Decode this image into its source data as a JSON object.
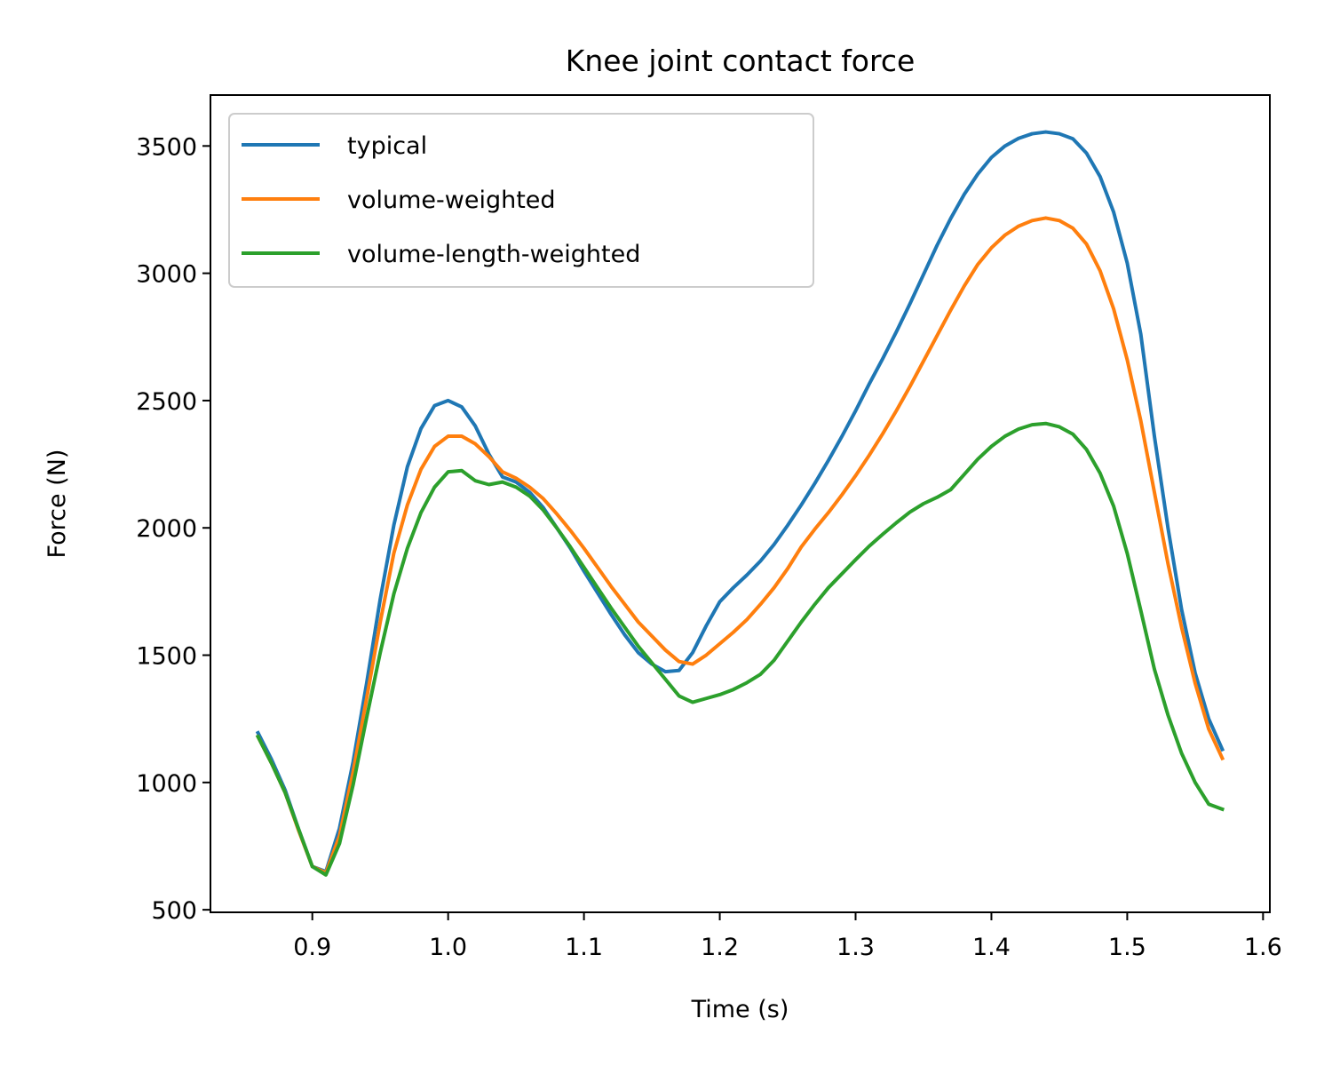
{
  "chart_data": {
    "type": "line",
    "title": "Knee joint contact force",
    "xlabel": "Time (s)",
    "ylabel": "Force (N)",
    "xlim": [
      0.825,
      1.605
    ],
    "ylim": [
      490,
      3700
    ],
    "xticks": [
      0.9,
      1.0,
      1.1,
      1.2,
      1.3,
      1.4,
      1.5,
      1.6
    ],
    "xtick_labels": [
      "0.9",
      "1.0",
      "1.1",
      "1.2",
      "1.3",
      "1.4",
      "1.5",
      "1.6"
    ],
    "yticks": [
      500,
      1000,
      1500,
      2000,
      2500,
      3000,
      3500
    ],
    "ytick_labels": [
      "500",
      "1000",
      "1500",
      "2000",
      "2500",
      "3000",
      "3500"
    ],
    "grid": false,
    "legend_position": "upper-left",
    "series": [
      {
        "name": "typical",
        "color": "#1f77b4",
        "points": [
          [
            0.86,
            1195
          ],
          [
            0.87,
            1090
          ],
          [
            0.88,
            970
          ],
          [
            0.89,
            815
          ],
          [
            0.9,
            670
          ],
          [
            0.91,
            650
          ],
          [
            0.92,
            820
          ],
          [
            0.93,
            1080
          ],
          [
            0.94,
            1390
          ],
          [
            0.95,
            1720
          ],
          [
            0.96,
            2010
          ],
          [
            0.97,
            2240
          ],
          [
            0.98,
            2390
          ],
          [
            0.99,
            2480
          ],
          [
            1.0,
            2500
          ],
          [
            1.01,
            2475
          ],
          [
            1.02,
            2400
          ],
          [
            1.03,
            2290
          ],
          [
            1.04,
            2200
          ],
          [
            1.05,
            2180
          ],
          [
            1.06,
            2140
          ],
          [
            1.07,
            2080
          ],
          [
            1.08,
            2000
          ],
          [
            1.09,
            1920
          ],
          [
            1.1,
            1830
          ],
          [
            1.11,
            1745
          ],
          [
            1.12,
            1660
          ],
          [
            1.13,
            1580
          ],
          [
            1.14,
            1510
          ],
          [
            1.15,
            1465
          ],
          [
            1.16,
            1435
          ],
          [
            1.17,
            1440
          ],
          [
            1.18,
            1510
          ],
          [
            1.19,
            1615
          ],
          [
            1.2,
            1710
          ],
          [
            1.21,
            1765
          ],
          [
            1.22,
            1815
          ],
          [
            1.23,
            1870
          ],
          [
            1.24,
            1935
          ],
          [
            1.25,
            2010
          ],
          [
            1.26,
            2090
          ],
          [
            1.27,
            2175
          ],
          [
            1.28,
            2265
          ],
          [
            1.29,
            2360
          ],
          [
            1.3,
            2460
          ],
          [
            1.31,
            2565
          ],
          [
            1.32,
            2665
          ],
          [
            1.33,
            2770
          ],
          [
            1.34,
            2880
          ],
          [
            1.35,
            2995
          ],
          [
            1.36,
            3110
          ],
          [
            1.37,
            3215
          ],
          [
            1.38,
            3310
          ],
          [
            1.39,
            3390
          ],
          [
            1.4,
            3455
          ],
          [
            1.41,
            3500
          ],
          [
            1.42,
            3530
          ],
          [
            1.43,
            3548
          ],
          [
            1.44,
            3555
          ],
          [
            1.45,
            3548
          ],
          [
            1.46,
            3528
          ],
          [
            1.47,
            3472
          ],
          [
            1.48,
            3380
          ],
          [
            1.49,
            3240
          ],
          [
            1.5,
            3040
          ],
          [
            1.51,
            2760
          ],
          [
            1.52,
            2360
          ],
          [
            1.53,
            2000
          ],
          [
            1.54,
            1680
          ],
          [
            1.55,
            1430
          ],
          [
            1.56,
            1250
          ],
          [
            1.57,
            1130
          ]
        ]
      },
      {
        "name": "volume-weighted",
        "color": "#ff7f0e",
        "points": [
          [
            0.86,
            1180
          ],
          [
            0.87,
            1075
          ],
          [
            0.88,
            960
          ],
          [
            0.89,
            810
          ],
          [
            0.9,
            670
          ],
          [
            0.91,
            645
          ],
          [
            0.92,
            790
          ],
          [
            0.93,
            1040
          ],
          [
            0.94,
            1330
          ],
          [
            0.95,
            1630
          ],
          [
            0.96,
            1900
          ],
          [
            0.97,
            2090
          ],
          [
            0.98,
            2230
          ],
          [
            0.99,
            2320
          ],
          [
            1.0,
            2360
          ],
          [
            1.01,
            2360
          ],
          [
            1.02,
            2330
          ],
          [
            1.03,
            2280
          ],
          [
            1.04,
            2220
          ],
          [
            1.05,
            2195
          ],
          [
            1.06,
            2160
          ],
          [
            1.07,
            2115
          ],
          [
            1.08,
            2055
          ],
          [
            1.09,
            1990
          ],
          [
            1.1,
            1920
          ],
          [
            1.11,
            1845
          ],
          [
            1.12,
            1770
          ],
          [
            1.13,
            1700
          ],
          [
            1.14,
            1630
          ],
          [
            1.15,
            1575
          ],
          [
            1.16,
            1520
          ],
          [
            1.17,
            1475
          ],
          [
            1.18,
            1465
          ],
          [
            1.19,
            1500
          ],
          [
            1.2,
            1545
          ],
          [
            1.21,
            1590
          ],
          [
            1.22,
            1640
          ],
          [
            1.23,
            1700
          ],
          [
            1.24,
            1765
          ],
          [
            1.25,
            1840
          ],
          [
            1.26,
            1925
          ],
          [
            1.27,
            1995
          ],
          [
            1.28,
            2060
          ],
          [
            1.29,
            2130
          ],
          [
            1.3,
            2205
          ],
          [
            1.31,
            2285
          ],
          [
            1.32,
            2370
          ],
          [
            1.33,
            2460
          ],
          [
            1.34,
            2555
          ],
          [
            1.35,
            2655
          ],
          [
            1.36,
            2755
          ],
          [
            1.37,
            2855
          ],
          [
            1.38,
            2950
          ],
          [
            1.39,
            3035
          ],
          [
            1.4,
            3100
          ],
          [
            1.41,
            3150
          ],
          [
            1.42,
            3185
          ],
          [
            1.43,
            3207
          ],
          [
            1.44,
            3217
          ],
          [
            1.45,
            3207
          ],
          [
            1.46,
            3177
          ],
          [
            1.47,
            3115
          ],
          [
            1.48,
            3010
          ],
          [
            1.49,
            2860
          ],
          [
            1.5,
            2660
          ],
          [
            1.51,
            2420
          ],
          [
            1.52,
            2140
          ],
          [
            1.53,
            1860
          ],
          [
            1.54,
            1610
          ],
          [
            1.55,
            1390
          ],
          [
            1.56,
            1210
          ],
          [
            1.57,
            1095
          ]
        ]
      },
      {
        "name": "volume-length-weighted",
        "color": "#2ca02c",
        "points": [
          [
            0.86,
            1180
          ],
          [
            0.87,
            1075
          ],
          [
            0.88,
            960
          ],
          [
            0.89,
            815
          ],
          [
            0.9,
            670
          ],
          [
            0.91,
            637
          ],
          [
            0.92,
            760
          ],
          [
            0.93,
            990
          ],
          [
            0.94,
            1255
          ],
          [
            0.95,
            1510
          ],
          [
            0.96,
            1740
          ],
          [
            0.97,
            1920
          ],
          [
            0.98,
            2060
          ],
          [
            0.99,
            2160
          ],
          [
            1.0,
            2220
          ],
          [
            1.01,
            2225
          ],
          [
            1.02,
            2185
          ],
          [
            1.03,
            2170
          ],
          [
            1.04,
            2180
          ],
          [
            1.05,
            2160
          ],
          [
            1.06,
            2125
          ],
          [
            1.07,
            2070
          ],
          [
            1.08,
            2000
          ],
          [
            1.09,
            1925
          ],
          [
            1.1,
            1845
          ],
          [
            1.11,
            1765
          ],
          [
            1.12,
            1685
          ],
          [
            1.13,
            1610
          ],
          [
            1.14,
            1535
          ],
          [
            1.15,
            1470
          ],
          [
            1.16,
            1405
          ],
          [
            1.17,
            1340
          ],
          [
            1.18,
            1315
          ],
          [
            1.19,
            1330
          ],
          [
            1.2,
            1345
          ],
          [
            1.21,
            1365
          ],
          [
            1.22,
            1392
          ],
          [
            1.23,
            1425
          ],
          [
            1.24,
            1480
          ],
          [
            1.25,
            1555
          ],
          [
            1.26,
            1630
          ],
          [
            1.27,
            1700
          ],
          [
            1.28,
            1765
          ],
          [
            1.29,
            1820
          ],
          [
            1.3,
            1875
          ],
          [
            1.31,
            1928
          ],
          [
            1.32,
            1975
          ],
          [
            1.33,
            2020
          ],
          [
            1.34,
            2062
          ],
          [
            1.35,
            2095
          ],
          [
            1.36,
            2120
          ],
          [
            1.37,
            2150
          ],
          [
            1.38,
            2210
          ],
          [
            1.39,
            2270
          ],
          [
            1.4,
            2320
          ],
          [
            1.41,
            2360
          ],
          [
            1.42,
            2388
          ],
          [
            1.43,
            2405
          ],
          [
            1.44,
            2410
          ],
          [
            1.45,
            2397
          ],
          [
            1.46,
            2368
          ],
          [
            1.47,
            2308
          ],
          [
            1.48,
            2215
          ],
          [
            1.49,
            2085
          ],
          [
            1.5,
            1900
          ],
          [
            1.51,
            1675
          ],
          [
            1.52,
            1445
          ],
          [
            1.53,
            1265
          ],
          [
            1.54,
            1115
          ],
          [
            1.55,
            1000
          ],
          [
            1.56,
            915
          ],
          [
            1.57,
            895
          ]
        ]
      }
    ]
  }
}
